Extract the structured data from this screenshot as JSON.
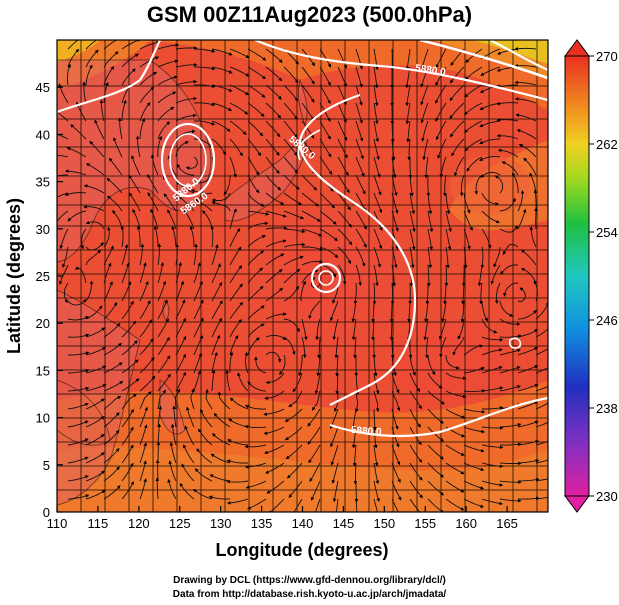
{
  "title": "GSM 00Z11Aug2023 (500.0hPa)",
  "axes": {
    "xlabel": "Longitude (degrees)",
    "ylabel": "Latitude (degrees)",
    "xticks": [
      "110",
      "115",
      "120",
      "125",
      "130",
      "135",
      "140",
      "145",
      "150",
      "155",
      "160",
      "165"
    ],
    "yticks": [
      "0",
      "5",
      "10",
      "15",
      "20",
      "25",
      "30",
      "35",
      "40",
      "45"
    ]
  },
  "colorbar": {
    "labels": [
      "270",
      "262",
      "254",
      "246",
      "238",
      "230"
    ],
    "min": 230,
    "max": 270
  },
  "contour_labels": [
    "5860.0",
    "5880.0",
    "5880.0",
    "5880.0",
    "5880.0"
  ],
  "credits": {
    "line1": "Drawing by DCL (https://www.gfd-dennou.org/library/dcl/)",
    "line2": "Data from http://database.rish.kyoto-u.ac.jp/arch/jmadata/"
  }
}
